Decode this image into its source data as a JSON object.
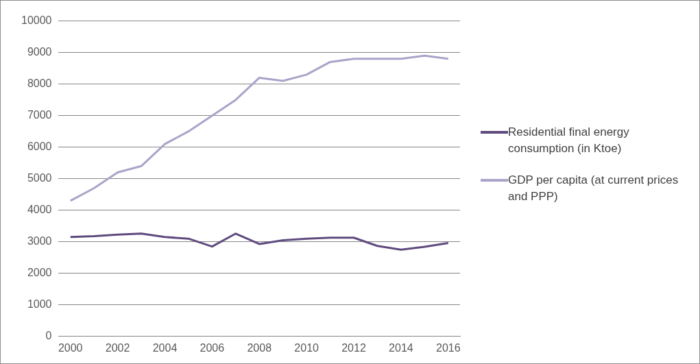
{
  "chart_data": {
    "type": "line",
    "categories": [
      "2000",
      null,
      "2002",
      null,
      "2004",
      null,
      "2006",
      null,
      "2008",
      null,
      "2010",
      null,
      "2012",
      null,
      "2014",
      null,
      "2016"
    ],
    "series": [
      {
        "name": "Residential final energy consumption (in Ktoe)",
        "color": "#5f4b7e",
        "values": [
          3150,
          3180,
          3230,
          3260,
          3150,
          3100,
          2850,
          3260,
          2930,
          3050,
          3100,
          3130,
          3130,
          2870,
          2750,
          2840,
          2960
        ]
      },
      {
        "name": "GDP per capita (at current prices and PPP)",
        "color": "#aaa4c9",
        "values": [
          4300,
          4700,
          5200,
          5400,
          6100,
          6500,
          7000,
          7500,
          8200,
          8100,
          8300,
          8700,
          8800,
          8800,
          8800,
          8900,
          8800
        ]
      }
    ],
    "ylim": [
      0,
      10000
    ],
    "yticks": [
      0,
      1000,
      2000,
      3000,
      4000,
      5000,
      6000,
      7000,
      8000,
      9000,
      10000
    ],
    "grid": "y",
    "legend": "right",
    "marker": "none",
    "line_style": "solid"
  }
}
